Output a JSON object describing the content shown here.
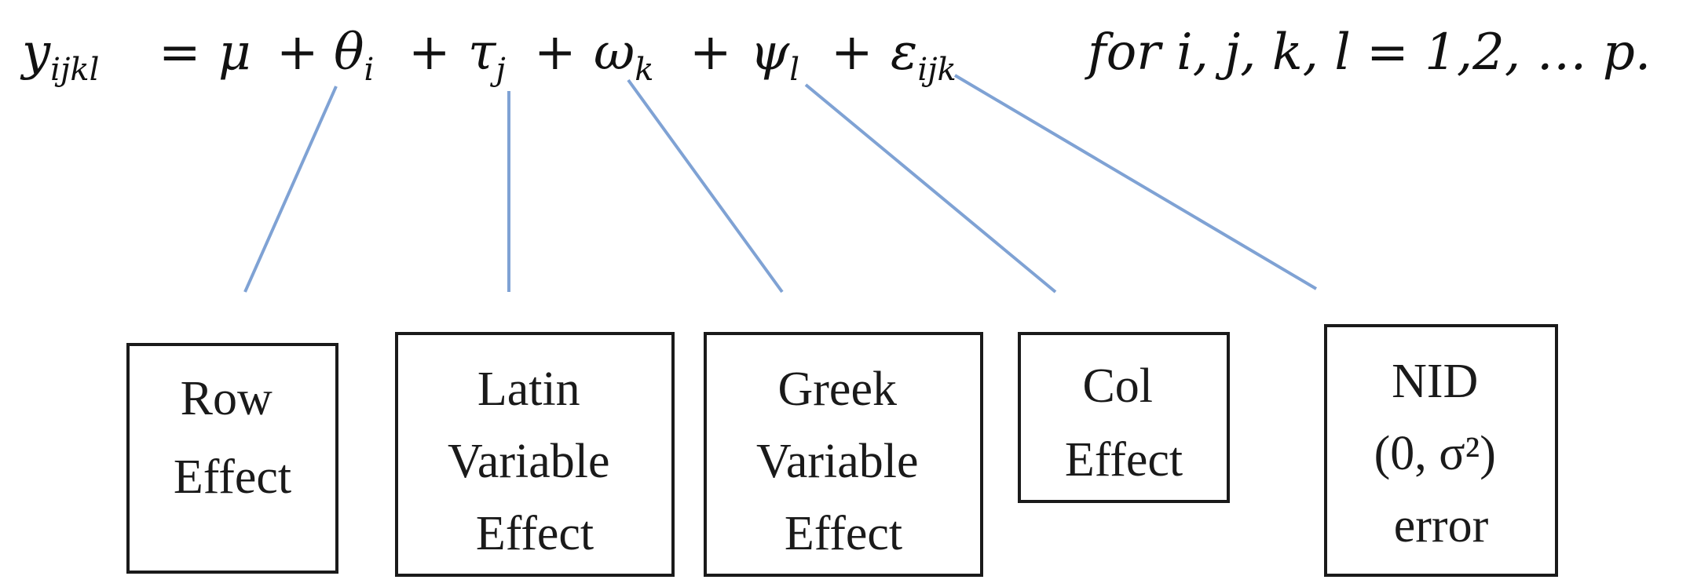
{
  "equation": {
    "y": "y",
    "y_sub": "ijkl",
    "eq": "=",
    "mu": "μ",
    "plus1": "+",
    "theta": "θ",
    "theta_sub": "i",
    "plus2": "+",
    "tau": "τ",
    "tau_sub": "j",
    "plus3": "+",
    "omega": "ω",
    "omega_sub": "k",
    "plus4": "+",
    "psi": "ψ",
    "psi_sub": "l",
    "plus5": "+",
    "eps": "ε",
    "eps_sub": "ijk",
    "condition": "for i, j, k, l = 1,2, … p."
  },
  "boxes": {
    "row": [
      "Row",
      "Effect"
    ],
    "latin": [
      "Latin",
      "Variable",
      "Effect"
    ],
    "greek": [
      "Greek",
      "Variable",
      "Effect"
    ],
    "col": [
      "Col",
      "Effect"
    ],
    "error": [
      "NID",
      "(0, σ²)",
      "error"
    ]
  },
  "colors": {
    "connector": "#7fa2d4",
    "box_border": "#1a1a1a",
    "text": "#111111"
  }
}
